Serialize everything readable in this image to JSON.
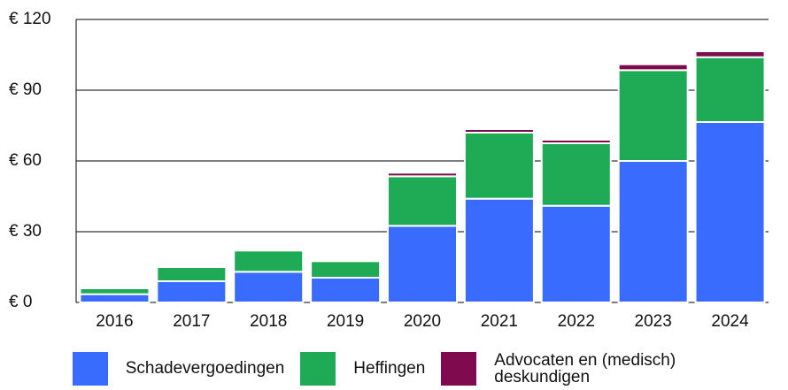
{
  "chart_data": {
    "type": "stacked_bar",
    "categories": [
      "2016",
      "2017",
      "2018",
      "2019",
      "2020",
      "2021",
      "2022",
      "2023",
      "2024"
    ],
    "series": [
      {
        "name": "Schadevergoedingen",
        "color": "#3a6bff",
        "values": [
          3.5,
          9,
          13,
          10.5,
          32.5,
          44,
          41,
          60,
          76.5
        ]
      },
      {
        "name": "Heffingen",
        "color": "#1faa55",
        "values": [
          2.5,
          6,
          9,
          7,
          21,
          28,
          26.5,
          38.5,
          27.5
        ]
      },
      {
        "name": "Advocaten en (medisch) deskundigen",
        "color": "#800a4e",
        "values": [
          0,
          0,
          0,
          0,
          1.5,
          1.5,
          1.5,
          2.5,
          2.5
        ]
      }
    ],
    "ylim": [
      0,
      120
    ],
    "yticks": [
      {
        "value": 0,
        "label": "€ 0"
      },
      {
        "value": 30,
        "label": "€ 30"
      },
      {
        "value": 60,
        "label": "€ 60"
      },
      {
        "value": 90,
        "label": "€ 90"
      },
      {
        "value": 120,
        "label": "€ 120"
      }
    ],
    "grid": true,
    "legend": "bottom"
  }
}
